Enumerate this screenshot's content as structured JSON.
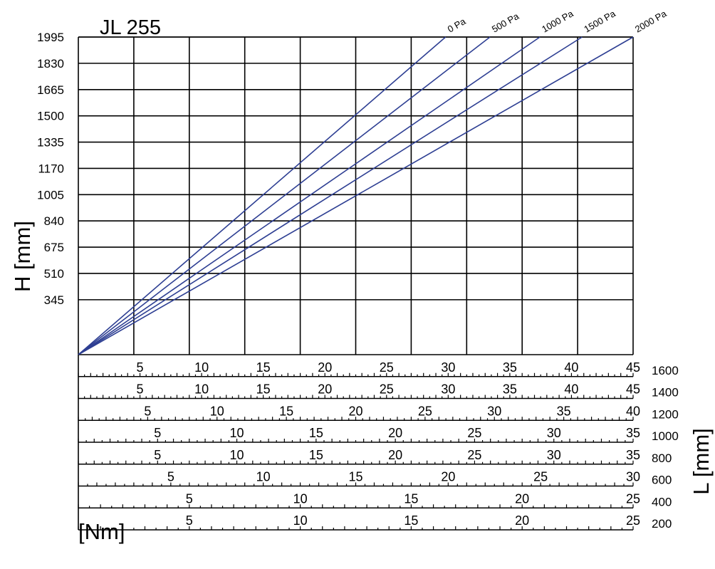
{
  "chart_data": {
    "type": "line",
    "title": "JL 255",
    "ylabel": "H [mm]",
    "xlabel": "[Nm]",
    "scale_axis_label": "L [mm]",
    "ylim": [
      0,
      1995
    ],
    "xlim": [
      0,
      50
    ],
    "y_ticks": [
      345,
      510,
      675,
      840,
      1005,
      1170,
      1335,
      1500,
      1665,
      1830,
      1995
    ],
    "grid": true,
    "series": [
      {
        "name": "0 Pa",
        "color": "#2e3f93",
        "x": [
          0,
          33.1
        ],
        "y": [
          0,
          1995
        ]
      },
      {
        "name": "500 Pa",
        "color": "#2e3f93",
        "x": [
          0,
          37.1
        ],
        "y": [
          0,
          1995
        ]
      },
      {
        "name": "1000 Pa",
        "color": "#2e3f93",
        "x": [
          0,
          41.6
        ],
        "y": [
          0,
          1995
        ]
      },
      {
        "name": "1500 Pa",
        "color": "#2e3f93",
        "x": [
          0,
          45.4
        ],
        "y": [
          0,
          1995
        ]
      },
      {
        "name": "2000 Pa",
        "color": "#2e3f93",
        "x": [
          0,
          50
        ],
        "y": [
          0,
          1995
        ]
      }
    ],
    "scales": [
      {
        "L": "1600",
        "max": 45,
        "labels": [
          "5",
          "10",
          "15",
          "20",
          "25",
          "30",
          "35",
          "40",
          "45"
        ]
      },
      {
        "L": "1400",
        "max": 45,
        "labels": [
          "5",
          "10",
          "15",
          "20",
          "25",
          "30",
          "35",
          "40",
          "45"
        ]
      },
      {
        "L": "1200",
        "max": 40,
        "labels": [
          "5",
          "10",
          "15",
          "20",
          "25",
          "30",
          "35",
          "40"
        ]
      },
      {
        "L": "1000",
        "max": 35,
        "labels": [
          "5",
          "10",
          "15",
          "20",
          "25",
          "30",
          "35"
        ]
      },
      {
        "L": "800",
        "max": 35,
        "labels": [
          "5",
          "10",
          "15",
          "20",
          "25",
          "30",
          "35"
        ]
      },
      {
        "L": "600",
        "max": 30,
        "labels": [
          "5",
          "10",
          "15",
          "20",
          "25",
          "30"
        ]
      },
      {
        "L": "400",
        "max": 25,
        "labels": [
          "5",
          "10",
          "15",
          "20",
          "25"
        ]
      },
      {
        "L": "200",
        "max": 25,
        "labels": [
          "5",
          "10",
          "15",
          "20",
          "25"
        ]
      }
    ]
  }
}
